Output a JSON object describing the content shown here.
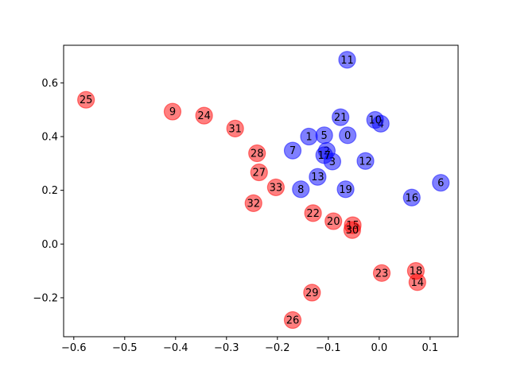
{
  "chart_data": {
    "type": "scatter",
    "title": "",
    "xlabel": "",
    "ylabel": "",
    "xlim": [
      -0.62,
      0.155
    ],
    "ylim": [
      -0.345,
      0.74
    ],
    "grid": false,
    "x_ticks": [
      -0.6,
      -0.5,
      -0.4,
      -0.3,
      -0.2,
      -0.1,
      0.0,
      0.1
    ],
    "x_tick_labels": [
      "−0.6",
      "−0.5",
      "−0.4",
      "−0.3",
      "−0.2",
      "−0.1",
      "0.0",
      "0.1"
    ],
    "y_ticks": [
      -0.2,
      0.0,
      0.2,
      0.4,
      0.6
    ],
    "y_tick_labels": [
      "−0.2",
      "0.0",
      "0.2",
      "0.4",
      "0.6"
    ],
    "colors": {
      "blue": "#0000ff",
      "red": "#ff0000",
      "node_alpha": 0.5
    },
    "series": [
      {
        "color": "blue",
        "points": [
          {
            "label": "0",
            "x": -0.062,
            "y": 0.405
          },
          {
            "label": "1",
            "x": -0.138,
            "y": 0.4
          },
          {
            "label": "2",
            "x": -0.103,
            "y": 0.347
          },
          {
            "label": "3",
            "x": -0.092,
            "y": 0.307
          },
          {
            "label": "4",
            "x": 0.003,
            "y": 0.448
          },
          {
            "label": "5",
            "x": -0.108,
            "y": 0.405
          },
          {
            "label": "6",
            "x": 0.121,
            "y": 0.228
          },
          {
            "label": "7",
            "x": -0.17,
            "y": 0.348
          },
          {
            "label": "8",
            "x": -0.154,
            "y": 0.204
          },
          {
            "label": "10",
            "x": -0.008,
            "y": 0.462
          },
          {
            "label": "11",
            "x": -0.063,
            "y": 0.686
          },
          {
            "label": "12",
            "x": -0.027,
            "y": 0.309
          },
          {
            "label": "13",
            "x": -0.121,
            "y": 0.25
          },
          {
            "label": "16",
            "x": 0.064,
            "y": 0.173
          },
          {
            "label": "17",
            "x": -0.108,
            "y": 0.331
          },
          {
            "label": "19",
            "x": -0.066,
            "y": 0.204
          },
          {
            "label": "21",
            "x": -0.076,
            "y": 0.472
          }
        ]
      },
      {
        "color": "red",
        "points": [
          {
            "label": "9",
            "x": -0.406,
            "y": 0.493
          },
          {
            "label": "14",
            "x": 0.075,
            "y": -0.142
          },
          {
            "label": "15",
            "x": -0.052,
            "y": 0.07
          },
          {
            "label": "18",
            "x": 0.072,
            "y": -0.1
          },
          {
            "label": "20",
            "x": -0.09,
            "y": 0.085
          },
          {
            "label": "22",
            "x": -0.13,
            "y": 0.115
          },
          {
            "label": "23",
            "x": 0.005,
            "y": -0.108
          },
          {
            "label": "24",
            "x": -0.344,
            "y": 0.478
          },
          {
            "label": "25",
            "x": -0.576,
            "y": 0.537
          },
          {
            "label": "26",
            "x": -0.17,
            "y": -0.283
          },
          {
            "label": "27",
            "x": -0.236,
            "y": 0.267
          },
          {
            "label": "28",
            "x": -0.24,
            "y": 0.338
          },
          {
            "label": "29",
            "x": -0.132,
            "y": -0.181
          },
          {
            "label": "30",
            "x": -0.053,
            "y": 0.052
          },
          {
            "label": "31",
            "x": -0.283,
            "y": 0.43
          },
          {
            "label": "32",
            "x": -0.247,
            "y": 0.152
          },
          {
            "label": "33",
            "x": -0.203,
            "y": 0.211
          }
        ]
      }
    ]
  }
}
